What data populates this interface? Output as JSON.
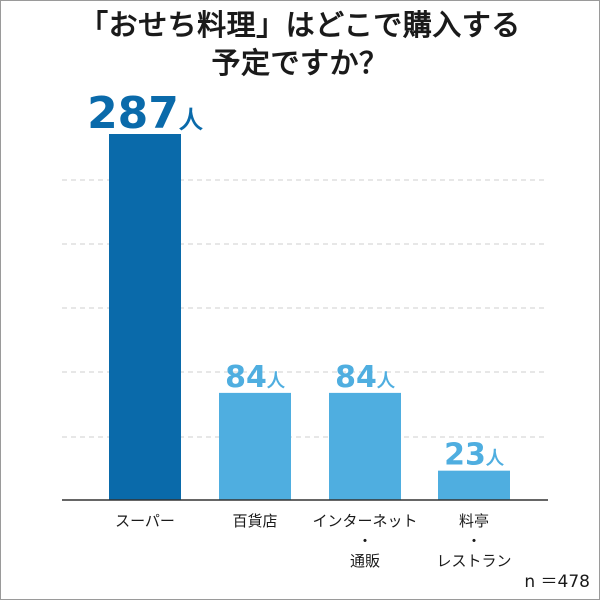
{
  "chart_data": {
    "type": "bar",
    "title_lines": [
      "「おせち料理」はどこで購入する",
      "予定ですか？"
    ],
    "categories": [
      [
        "スーパー"
      ],
      [
        "百貨店"
      ],
      [
        "インターネット",
        "・",
        "通販"
      ],
      [
        "料亭",
        "・",
        "レストラン"
      ]
    ],
    "values": [
      287,
      84,
      84,
      23
    ],
    "value_unit": "人",
    "ylim": [
      0,
      300
    ],
    "grid": true,
    "note": "n ＝478",
    "colors": {
      "highlight": "#0a6aaa",
      "normal": "#4faee0",
      "grid": "#cfcfcf",
      "axis": "#333333",
      "highlight_text": "#0a6aaa",
      "normal_text": "#4faee0"
    }
  }
}
